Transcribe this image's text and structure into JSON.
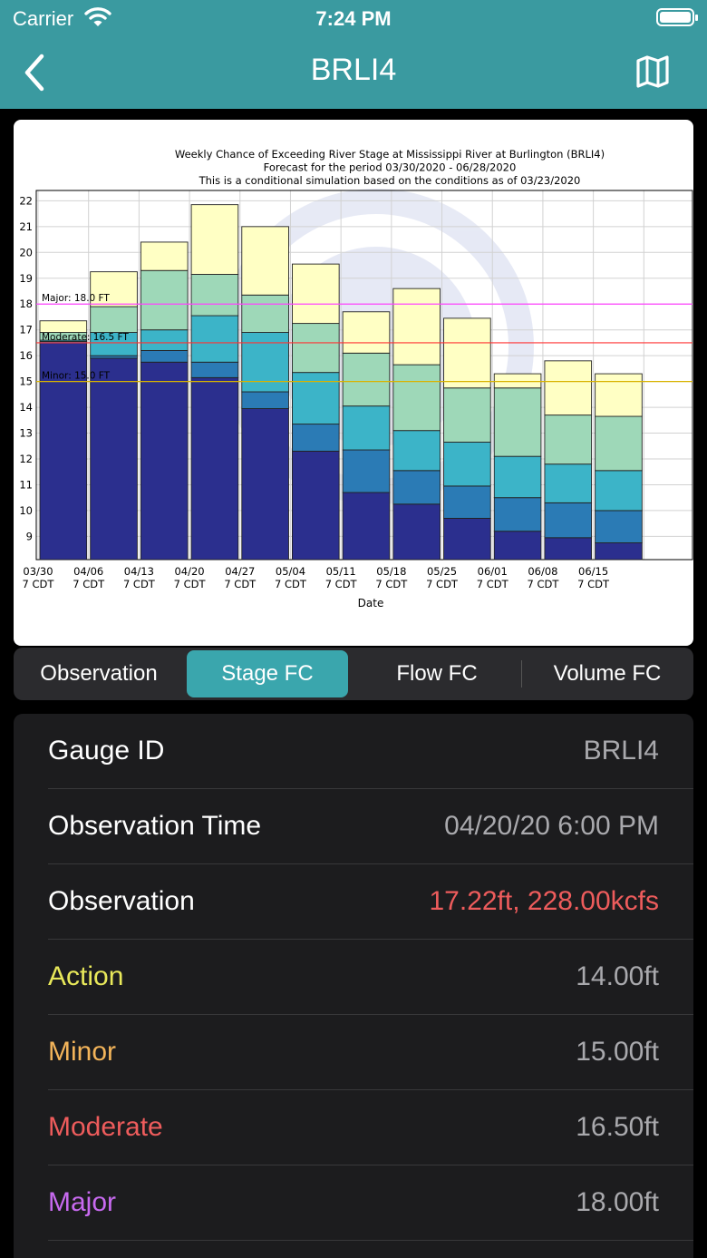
{
  "status_bar": {
    "carrier": "Carrier",
    "time": "7:24 PM"
  },
  "nav": {
    "title": "BRLI4",
    "back_icon": "chevron-left-icon",
    "map_icon": "map-icon"
  },
  "colors": {
    "accent": "#3a9aa0",
    "observation_value": "#ee5c5c",
    "action": "#e8e85a",
    "minor": "#f3b45a",
    "moderate": "#ee5c5c",
    "major": "#c86af0",
    "bands": [
      "#2b2f8e",
      "#2b7bb5",
      "#3cb4c8",
      "#9ed8b8",
      "#ffffc4"
    ]
  },
  "chart_data": {
    "type": "bar",
    "stacked": true,
    "title_lines": [
      "Weekly Chance of Exceeding River Stage at Mississippi River at Burlington (BRLI4)",
      "Forecast for the period 03/30/2020 - 06/28/2020",
      "This is a conditional simulation based on the conditions as of 03/23/2020"
    ],
    "xlabel": "Date",
    "ylabel": "",
    "ylim": [
      8.1,
      22.4
    ],
    "yticks": [
      9,
      10,
      11,
      12,
      13,
      14,
      15,
      16,
      17,
      18,
      19,
      20,
      21,
      22
    ],
    "grid": true,
    "categories": [
      [
        "03/30",
        "7 CDT"
      ],
      [
        "04/06",
        "7 CDT"
      ],
      [
        "04/13",
        "7 CDT"
      ],
      [
        "04/20",
        "7 CDT"
      ],
      [
        "04/27",
        "7 CDT"
      ],
      [
        "05/04",
        "7 CDT"
      ],
      [
        "05/11",
        "7 CDT"
      ],
      [
        "05/18",
        "7 CDT"
      ],
      [
        "05/25",
        "7 CDT"
      ],
      [
        "06/01",
        "7 CDT"
      ],
      [
        "06/08",
        "7 CDT"
      ],
      [
        "06/15",
        "7 CDT"
      ],
      [
        "",
        ""
      ]
    ],
    "bars": [
      [
        16.5,
        16.55,
        16.6,
        16.9,
        17.35
      ],
      [
        15.9,
        16.0,
        16.9,
        17.9,
        19.25
      ],
      [
        15.75,
        16.2,
        17.0,
        19.3,
        20.4
      ],
      [
        15.15,
        15.75,
        17.55,
        19.15,
        21.85
      ],
      [
        13.95,
        14.6,
        16.9,
        18.35,
        21.0
      ],
      [
        12.3,
        13.35,
        15.35,
        17.25,
        19.55
      ],
      [
        10.7,
        12.35,
        14.05,
        16.1,
        17.7
      ],
      [
        10.25,
        11.55,
        13.1,
        15.65,
        18.6
      ],
      [
        9.7,
        10.95,
        12.65,
        14.75,
        17.45
      ],
      [
        9.2,
        10.5,
        12.1,
        14.75,
        15.3
      ],
      [
        8.95,
        10.3,
        11.8,
        13.7,
        15.8
      ],
      [
        8.75,
        10.0,
        11.55,
        13.65,
        15.3
      ]
    ],
    "thresholds": [
      {
        "label": "Major: 18.0 FT",
        "value": 18.0,
        "color": "#ff44ff"
      },
      {
        "label": "Moderate: 16.5 FT",
        "value": 16.5,
        "color": "#ff3333"
      },
      {
        "label": "Minor: 15.0 FT",
        "value": 15.0,
        "color": "#d9b300"
      }
    ]
  },
  "tabs": [
    {
      "label": "Observation",
      "active": false
    },
    {
      "label": "Stage FC",
      "active": true
    },
    {
      "label": "Flow FC",
      "active": false
    },
    {
      "label": "Volume FC",
      "active": false
    }
  ],
  "details": {
    "gauge_id": {
      "label": "Gauge ID",
      "value": "BRLI4"
    },
    "observation_time": {
      "label": "Observation Time",
      "value": "04/20/20 6:00 PM"
    },
    "observation": {
      "label": "Observation",
      "value": "17.22ft, 228.00kcfs"
    },
    "action": {
      "label": "Action",
      "value": "14.00ft"
    },
    "minor": {
      "label": "Minor",
      "value": "15.00ft"
    },
    "moderate": {
      "label": "Moderate",
      "value": "16.50ft"
    },
    "major": {
      "label": "Major",
      "value": "18.00ft"
    }
  }
}
